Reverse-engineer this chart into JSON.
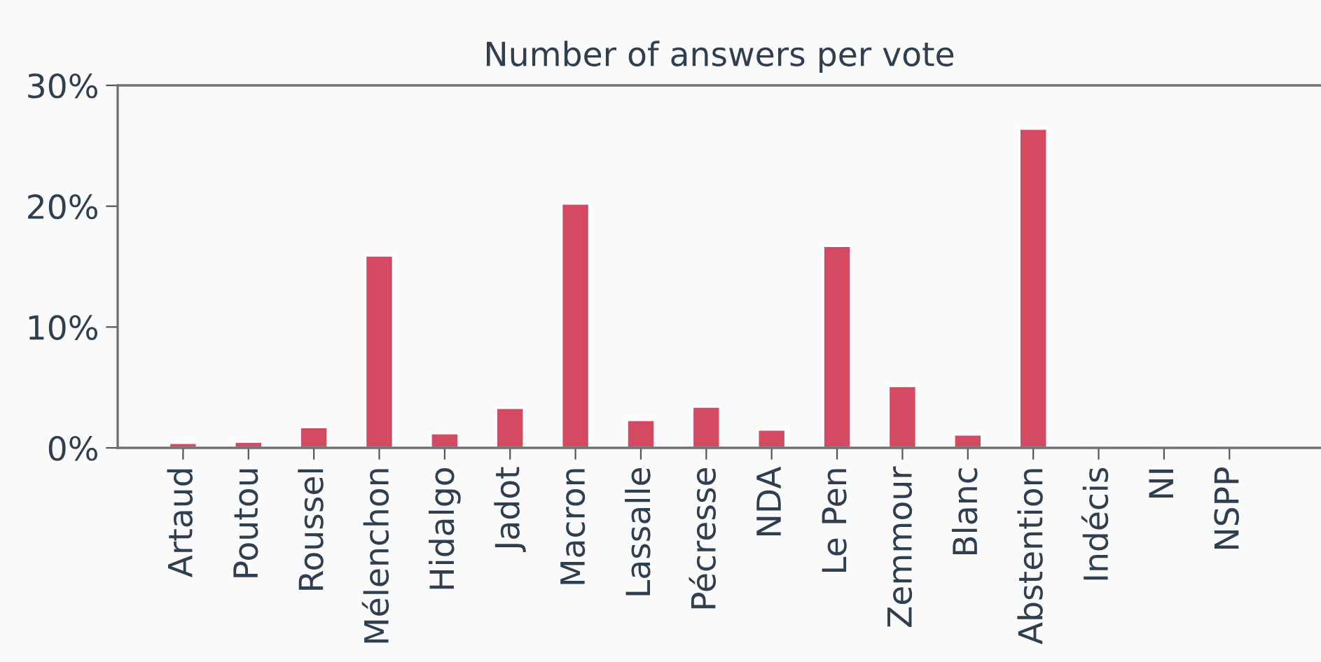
{
  "chart_data": {
    "type": "bar",
    "title": "Number of answers per vote",
    "categories": [
      "Artaud",
      "Poutou",
      "Roussel",
      "Mélenchon",
      "Hidalgo",
      "Jadot",
      "Macron",
      "Lassalle",
      "Pécresse",
      "NDA",
      "Le Pen",
      "Zemmour",
      "Blanc",
      "Abstention",
      "Indécis",
      "NI",
      "NSPP"
    ],
    "values": [
      0.4,
      0.5,
      1.7,
      15.9,
      1.2,
      3.3,
      20.2,
      2.3,
      3.4,
      1.5,
      16.7,
      5.1,
      1.1,
      26.4,
      0.1,
      0.1,
      0.1
    ],
    "color": "#d44a63",
    "ylim": [
      0,
      30
    ],
    "yticks": [
      {
        "value": 0,
        "label": "0%"
      },
      {
        "value": 10,
        "label": "10%"
      },
      {
        "value": 20,
        "label": "20%"
      },
      {
        "value": 30,
        "label": "30%"
      }
    ],
    "grid": false
  }
}
